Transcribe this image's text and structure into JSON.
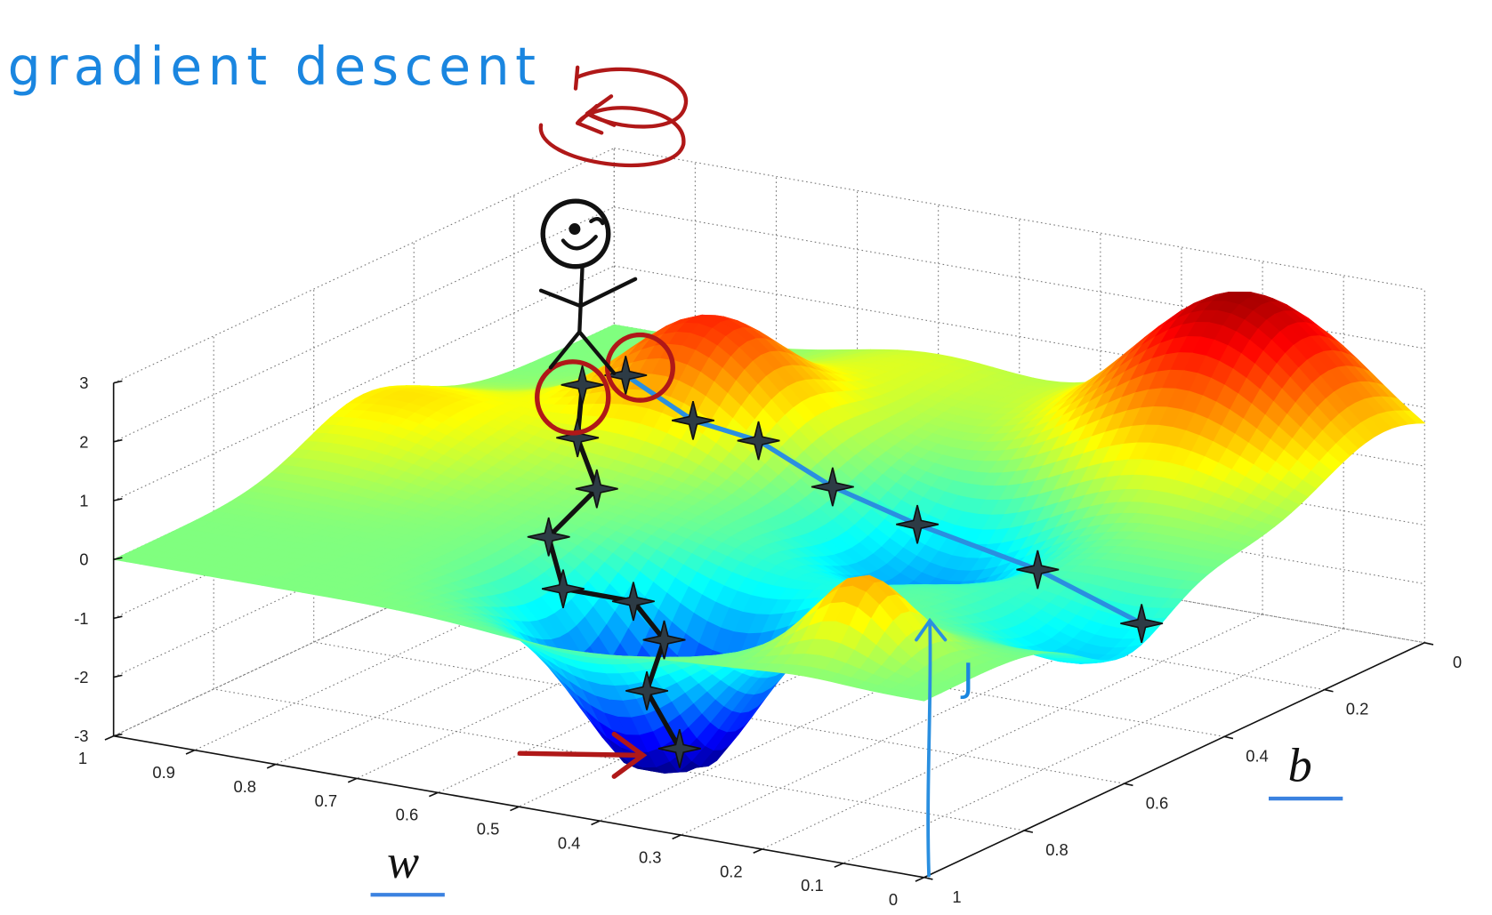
{
  "chart_data": {
    "type": "surface",
    "title": "gradient descent",
    "xlabel": "w",
    "ylabel": "b",
    "zlabel": "J",
    "xlim": [
      0,
      1
    ],
    "xticks": [
      1,
      0.9,
      0.8,
      0.7,
      0.6,
      0.5,
      0.4,
      0.3,
      0.2,
      0.1,
      0
    ],
    "ylim": [
      0,
      1
    ],
    "yticks": [
      0,
      0.2,
      0.4,
      0.6,
      0.8,
      1
    ],
    "zlim": [
      -3,
      3
    ],
    "zticks": [
      3,
      2,
      1,
      0,
      -1,
      -2,
      -3
    ],
    "grid": true,
    "colormap": "jet"
  }
}
